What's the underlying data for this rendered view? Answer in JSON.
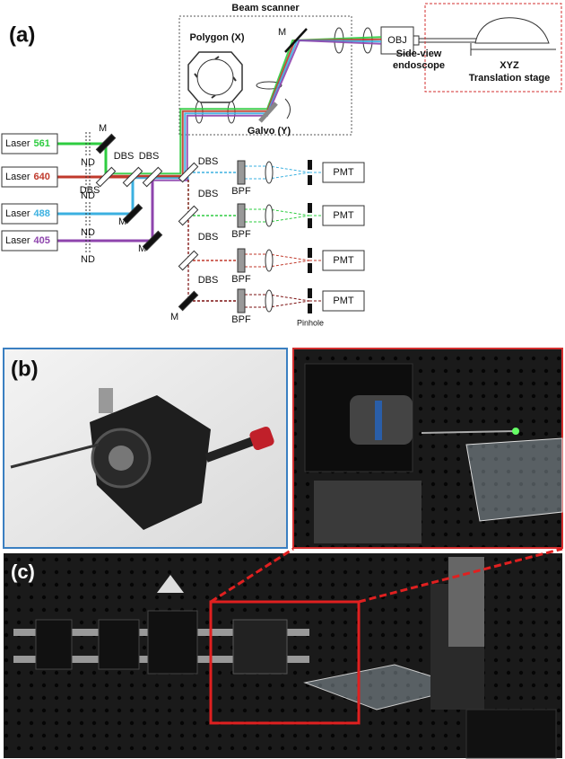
{
  "panel_labels": [
    "(a)",
    "(b)",
    "(c)"
  ],
  "scanner": {
    "title": "Beam scanner",
    "polygon": "Polygon (X)",
    "galvo": "Galvo (Y)"
  },
  "objective": "OBJ",
  "endoscope": [
    "Side-view",
    "endoscope"
  ],
  "stage": [
    "XYZ",
    "Translation stage"
  ],
  "lasers": [
    {
      "label": "Laser",
      "wavelength": "561",
      "color": "#2ecc40"
    },
    {
      "label": "Laser",
      "wavelength": "640",
      "color": "#c0392b"
    },
    {
      "label": "Laser",
      "wavelength": "488",
      "color": "#3bb0e0"
    },
    {
      "label": "Laser",
      "wavelength": "405",
      "color": "#8e44ad"
    }
  ],
  "nd": [
    "ND",
    "ND",
    "ND",
    "ND"
  ],
  "mirrors": [
    "M",
    "M",
    "M",
    "M",
    "M"
  ],
  "dbs": [
    "DBS",
    "DBS",
    "DBS",
    "DBS",
    "DBS",
    "DBS",
    "DBS"
  ],
  "bpf": [
    "BPF",
    "BPF",
    "BPF",
    "BPF"
  ],
  "pmt": [
    "PMT",
    "PMT",
    "PMT",
    "PMT"
  ],
  "pinhole": "Pinhole"
}
